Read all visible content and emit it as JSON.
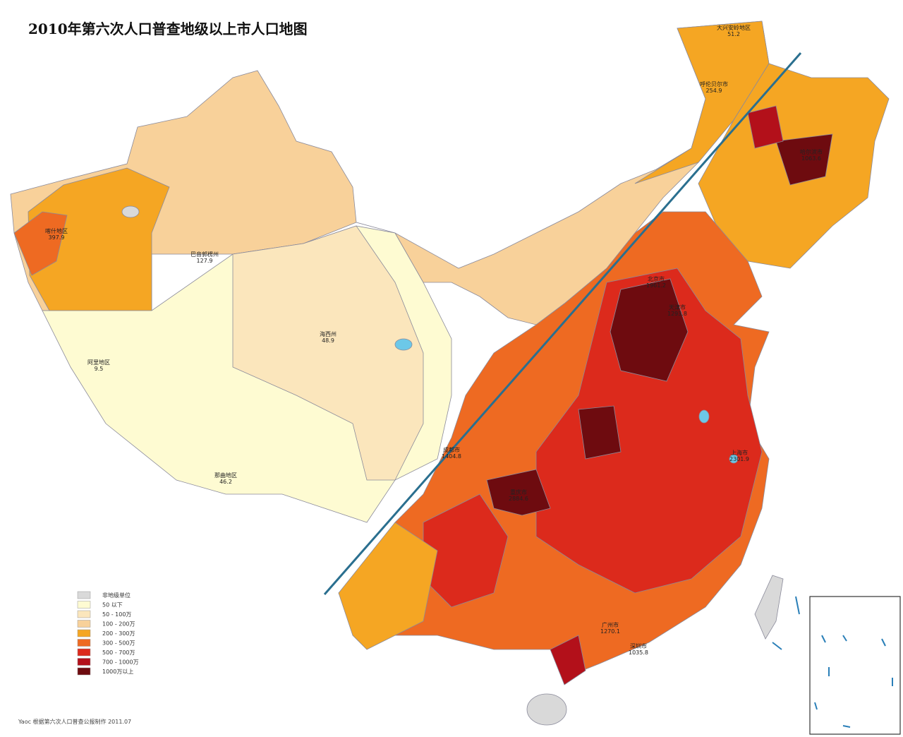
{
  "title": "2010年第六次人口普查地级以上市人口地图",
  "legend": [
    {
      "label": "非地级单位",
      "color": "#d9d9d9"
    },
    {
      "label": "50 以下",
      "color": "#fefbd2"
    },
    {
      "label": "50 - 100万",
      "color": "#fbe6bc"
    },
    {
      "label": "100 - 200万",
      "color": "#f8d19a"
    },
    {
      "label": "200 - 300万",
      "color": "#f5a623"
    },
    {
      "label": "300 - 500万",
      "color": "#ee6a22"
    },
    {
      "label": "500 - 700万",
      "color": "#dc2a1c"
    },
    {
      "label": "700 - 1000万",
      "color": "#b3101a"
    },
    {
      "label": "1000万以上",
      "color": "#6e0b0f"
    }
  ],
  "regions": [
    {
      "name": "大兴安岭地区",
      "value": 51.2
    },
    {
      "name": "呼伦贝尔市",
      "value": 254.9
    },
    {
      "name": "哈尔滨市",
      "value": 1063.6
    },
    {
      "name": "喀什地区",
      "value": 397.9
    },
    {
      "name": "巴音郭楞州",
      "value": 127.9
    },
    {
      "name": "海西州",
      "value": 48.9
    },
    {
      "name": "阿里地区",
      "value": 9.5
    },
    {
      "name": "那曲地区",
      "value": 46.2
    },
    {
      "name": "重庆市",
      "value": 2884.6
    },
    {
      "name": "成都市",
      "value": 1404.8
    },
    {
      "name": "北京市",
      "value": 1961.2
    },
    {
      "name": "天津市",
      "value": 1293.8
    },
    {
      "name": "上海市",
      "value": 2301.9
    },
    {
      "name": "广州市",
      "value": 1270.1
    },
    {
      "name": "深圳市",
      "value": 1035.8
    }
  ],
  "credit": "Yaoc 根据第六次人口普查公报制作 2011.07"
}
